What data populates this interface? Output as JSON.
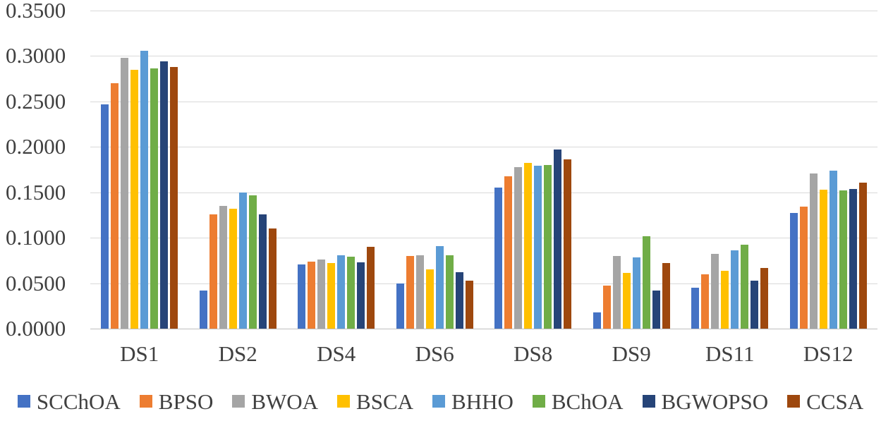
{
  "chart_data": {
    "type": "bar",
    "title": "",
    "xlabel": "",
    "ylabel": "",
    "ylim": [
      0,
      0.35
    ],
    "grid": true,
    "legend_position": "bottom",
    "y_ticks": [
      "0.3500",
      "0.3000",
      "0.2500",
      "0.2000",
      "0.1500",
      "0.1000",
      "0.0500",
      "0.0000"
    ],
    "categories": [
      "DS1",
      "DS2",
      "DS4",
      "DS6",
      "DS8",
      "DS9",
      "DS11",
      "DS12"
    ],
    "series": [
      {
        "name": "SCChOA",
        "color": "#4472C4",
        "values": [
          0.247,
          0.042,
          0.071,
          0.05,
          0.155,
          0.018,
          0.045,
          0.127
        ]
      },
      {
        "name": "BPSO",
        "color": "#ED7D31",
        "values": [
          0.27,
          0.126,
          0.074,
          0.08,
          0.168,
          0.047,
          0.06,
          0.134
        ]
      },
      {
        "name": "BWOA",
        "color": "#A5A5A5",
        "values": [
          0.298,
          0.135,
          0.076,
          0.081,
          0.178,
          0.08,
          0.082,
          0.171
        ]
      },
      {
        "name": "BSCA",
        "color": "#FFC000",
        "values": [
          0.285,
          0.132,
          0.072,
          0.065,
          0.182,
          0.061,
          0.064,
          0.153
        ]
      },
      {
        "name": "BHHO",
        "color": "#5B9BD5",
        "values": [
          0.306,
          0.15,
          0.081,
          0.091,
          0.179,
          0.078,
          0.086,
          0.174
        ]
      },
      {
        "name": "BChOA",
        "color": "#70AD47",
        "values": [
          0.286,
          0.147,
          0.079,
          0.081,
          0.18,
          0.102,
          0.092,
          0.152
        ]
      },
      {
        "name": "BGWOPSO",
        "color": "#264478",
        "values": [
          0.294,
          0.126,
          0.073,
          0.062,
          0.197,
          0.042,
          0.053,
          0.154
        ]
      },
      {
        "name": "CCSA",
        "color": "#9E480E",
        "values": [
          0.288,
          0.11,
          0.09,
          0.053,
          0.186,
          0.072,
          0.067,
          0.161
        ]
      }
    ],
    "axis_style": {
      "grid_color": "#D9D9D9",
      "axis_line_color": "#BFBFBF",
      "text_color": "#404040",
      "background": "#FFFFFF"
    }
  }
}
